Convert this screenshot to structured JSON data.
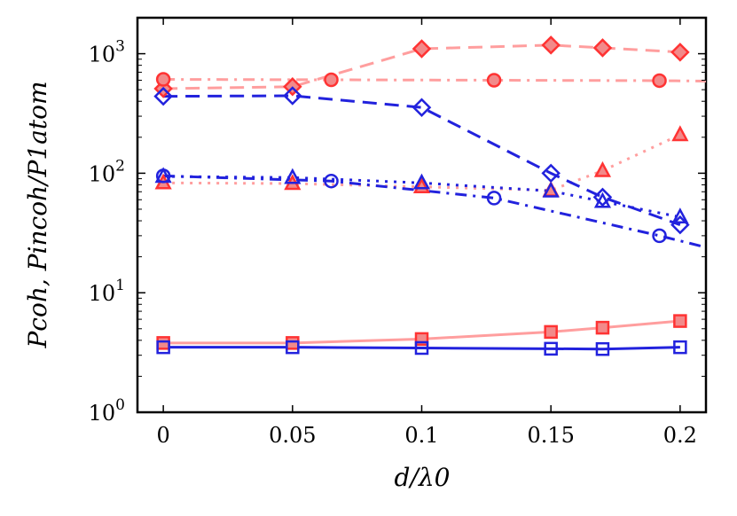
{
  "chart_data": {
    "type": "line",
    "yscale": "log",
    "xlabel": "d/λ0",
    "ylabel": "Pcoh, Pincoh/P1atom",
    "xlim": [
      -0.01,
      0.21
    ],
    "ylim": [
      1,
      2000
    ],
    "x_ticks": [
      {
        "value": 0,
        "label": "0"
      },
      {
        "value": 0.05,
        "label": "0.05"
      },
      {
        "value": 0.1,
        "label": "0.1"
      },
      {
        "value": 0.15,
        "label": "0.15"
      },
      {
        "value": 0.2,
        "label": "0.2"
      }
    ],
    "y_ticks": [
      {
        "value": 1,
        "base": "10",
        "exp": "0"
      },
      {
        "value": 10,
        "base": "10",
        "exp": "1"
      },
      {
        "value": 100,
        "base": "10",
        "exp": "2"
      },
      {
        "value": 1000,
        "base": "10",
        "exp": "3"
      }
    ],
    "series": [
      {
        "name": "red-diamond-dashed",
        "color": "#ff9e9e",
        "marker_color": "#ff3333",
        "marker": "diamond",
        "filled": true,
        "dash": "long",
        "x": [
          0,
          0.05,
          0.1,
          0.15,
          0.17,
          0.2
        ],
        "y": [
          510,
          530,
          1100,
          1180,
          1120,
          1030
        ]
      },
      {
        "name": "red-circle-dashdot",
        "color": "#ff9e9e",
        "marker_color": "#ff3333",
        "marker": "circle",
        "filled": true,
        "dash": "dashdot",
        "x": [
          0,
          0.065,
          0.128,
          0.192,
          0.21
        ],
        "y": [
          610,
          605,
          600,
          595,
          590
        ]
      },
      {
        "name": "red-triangle-dotted",
        "color": "#ff9e9e",
        "marker_color": "#ff3333",
        "marker": "triangle",
        "filled": true,
        "dash": "dotted",
        "x": [
          0,
          0.05,
          0.1,
          0.15,
          0.17,
          0.2
        ],
        "y": [
          83,
          82,
          77,
          72,
          105,
          210
        ]
      },
      {
        "name": "red-square-solid",
        "color": "#ff9e9e",
        "marker_color": "#ff3333",
        "marker": "square",
        "filled": true,
        "dash": "solid",
        "x": [
          0,
          0.05,
          0.1,
          0.15,
          0.17,
          0.2
        ],
        "y": [
          3.8,
          3.8,
          4.1,
          4.7,
          5.1,
          5.8
        ]
      },
      {
        "name": "blue-diamond-dashed",
        "color": "#2222dd",
        "marker_color": "#2222dd",
        "marker": "diamond",
        "filled": false,
        "dash": "long",
        "x": [
          0,
          0.05,
          0.1,
          0.15,
          0.17,
          0.2
        ],
        "y": [
          440,
          445,
          355,
          100,
          63,
          37
        ]
      },
      {
        "name": "blue-circle-dashdot",
        "color": "#2222dd",
        "marker_color": "#2222dd",
        "marker": "circle",
        "filled": false,
        "dash": "dashdot",
        "x": [
          0,
          0.065,
          0.128,
          0.192,
          0.21
        ],
        "y": [
          95,
          86,
          62,
          30,
          24
        ]
      },
      {
        "name": "blue-triangle-dotted",
        "color": "#2222dd",
        "marker_color": "#2222dd",
        "marker": "triangle",
        "filled": false,
        "dash": "dotted",
        "x": [
          0,
          0.05,
          0.1,
          0.15,
          0.17,
          0.2
        ],
        "y": [
          94,
          92,
          83,
          71,
          58,
          43
        ]
      },
      {
        "name": "blue-square-solid",
        "color": "#2222dd",
        "marker_color": "#2222dd",
        "marker": "square",
        "filled": false,
        "dash": "solid",
        "x": [
          0,
          0.05,
          0.1,
          0.15,
          0.17,
          0.2
        ],
        "y": [
          3.5,
          3.5,
          3.45,
          3.4,
          3.38,
          3.5
        ]
      }
    ]
  }
}
